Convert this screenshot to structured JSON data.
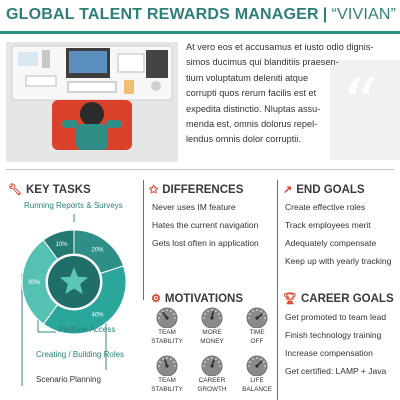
{
  "header": {
    "title": "GLOBAL TALENT REWARDS MANAGER",
    "separator": "|",
    "persona": "“VIVIAN”"
  },
  "intro": {
    "lines": [
      "At vero eos et accusamus et iusto odio dignis-",
      "simos ducimus qui blanditiis praesen-",
      "tium voluptatum  deleniti atque",
      "corrupti quos rerum facilis est et",
      "expedita distinctio. Nluptas assu-",
      "menda est, omnis dolorus repel-",
      "lendus omnis dolor corruptii."
    ],
    "quote_mark": "“"
  },
  "key_tasks": {
    "title": "KEY TASKS",
    "icon": "wrench-icon",
    "top_label": "Running Reports & Surveys",
    "donut": {
      "segments": [
        {
          "label": "20%",
          "value": 20,
          "color": "#2f8f86"
        },
        {
          "label": "40%",
          "value": 40,
          "color": "#2aa79a"
        },
        {
          "label": "30%",
          "value": 30,
          "color": "#55c1b3"
        },
        {
          "label": "10%",
          "value": 10,
          "color": "#247a72"
        }
      ],
      "center_icon": "star-icon"
    },
    "labels": [
      "Platform Access",
      "Creating / Building Roles",
      "Scenario Planning"
    ]
  },
  "differences": {
    "title": "DIFFERENCES",
    "icon": "star-icon",
    "items": [
      "Never uses IM feature",
      "Hates the current navigation",
      "Gets lost often in application"
    ]
  },
  "end_goals": {
    "title": "END GOALS",
    "icon": "trend-chart-icon",
    "items": [
      "Create effective roles",
      "Track employees merit",
      "Adequately compensate",
      "Keep up with yearly tracking"
    ]
  },
  "motivations": {
    "title": "MOTIVATIONS",
    "icon": "gear-icon",
    "gauges": [
      {
        "label_1": "TEAM",
        "label_2": "STABILITY",
        "level": 0.3
      },
      {
        "label_1": "MORE",
        "label_2": "MONEY",
        "level": 0.55
      },
      {
        "label_1": "TIME",
        "label_2": "OFF",
        "level": 0.8
      },
      {
        "label_1": "TEAM",
        "label_2": "STABILITY",
        "level": 0.4
      },
      {
        "label_1": "CAREER",
        "label_2": "GROWTH",
        "level": 0.6
      },
      {
        "label_1": "LIFE",
        "label_2": "BALANCE",
        "level": 0.75
      }
    ]
  },
  "career_goals": {
    "title": "CAREER GOALS",
    "icon": "trophy-icon",
    "items": [
      "Get promoted to team lead",
      "Finish technology training",
      "Increase compensation",
      "Get certified: LAMP + Java"
    ]
  },
  "colors": {
    "accent": "#2a8f85",
    "icon_red": "#d9412b"
  }
}
